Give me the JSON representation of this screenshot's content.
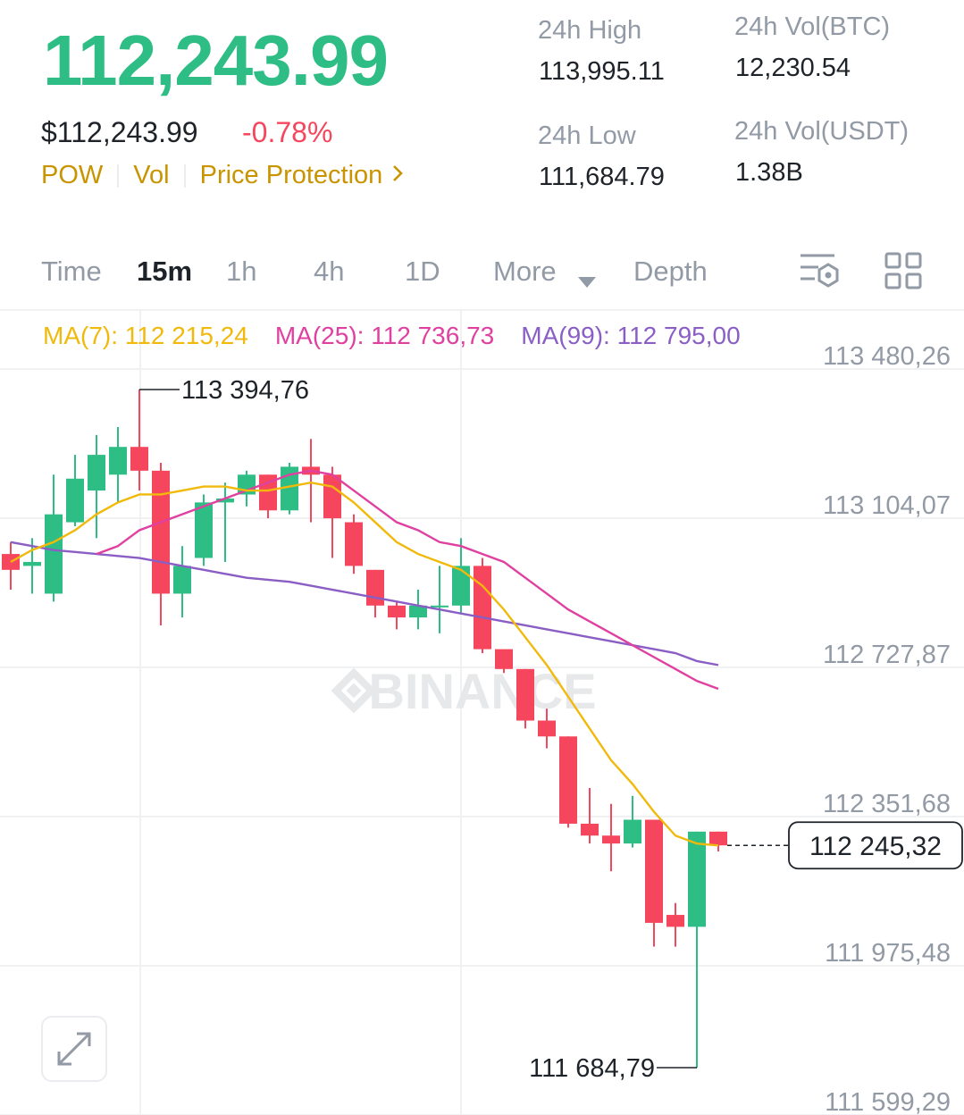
{
  "header": {
    "price": "112,243.99",
    "price_usd": "$112,243.99",
    "change_pct": "-0.78%",
    "tags": [
      "POW",
      "Vol",
      "Price Protection"
    ],
    "colors": {
      "up": "#2ebd85",
      "down": "#f6465d",
      "accent": "#c99400"
    }
  },
  "stats": {
    "high_label": "24h High",
    "high_value": "113,995.11",
    "low_label": "24h Low",
    "low_value": "111,684.79",
    "vol_btc_label": "24h Vol(BTC)",
    "vol_btc_value": "12,230.54",
    "vol_usdt_label": "24h Vol(USDT)",
    "vol_usdt_value": "1.38B"
  },
  "tabs": {
    "time": "Time",
    "m15": "15m",
    "h1": "1h",
    "h4": "4h",
    "d1": "1D",
    "more": "More",
    "depth": "Depth",
    "icons": [
      "chevron-down-icon",
      "indicator-settings-icon",
      "grid-layout-icon"
    ]
  },
  "ma": {
    "ma7_label": "MA(7): 112 215,24",
    "ma25_label": "MA(25): 112 736,73",
    "ma99_label": "MA(99): 112 795,00",
    "colors": {
      "ma7": "#f0b90b",
      "ma25": "#e040a0",
      "ma99": "#8a5ec4"
    }
  },
  "watermark": "BINANCE",
  "chart_data": {
    "type": "candlestick",
    "y_tick_labels": [
      "113 480,26",
      "113 104,07",
      "112 727,87",
      "112 351,68",
      "111 975,48",
      "111 599,29"
    ],
    "ylim": [
      111599.29,
      113480.26
    ],
    "current_price_label": "112 245,32",
    "current_price": 112245.32,
    "high_annotation": "113 394,76",
    "high_value": 113394.76,
    "low_annotation": "111 684,79",
    "low_value": 111684.79,
    "candles": [
      {
        "o": 112980,
        "h": 113010,
        "c": 112940,
        "l": 112890
      },
      {
        "o": 112950,
        "h": 113020,
        "c": 112960,
        "l": 112880
      },
      {
        "o": 112880,
        "h": 113180,
        "c": 113080,
        "l": 112860
      },
      {
        "o": 113060,
        "h": 113230,
        "c": 113170,
        "l": 113050
      },
      {
        "o": 113140,
        "h": 113280,
        "c": 113230,
        "l": 113020
      },
      {
        "o": 113180,
        "h": 113300,
        "c": 113250,
        "l": 113110
      },
      {
        "o": 113250,
        "h": 113394.76,
        "c": 113190,
        "l": 113140
      },
      {
        "o": 113190,
        "h": 113210,
        "c": 112880,
        "l": 112800
      },
      {
        "o": 112880,
        "h": 113000,
        "c": 112950,
        "l": 112820
      },
      {
        "o": 112970,
        "h": 113130,
        "c": 113110,
        "l": 112950
      },
      {
        "o": 113110,
        "h": 113160,
        "c": 113120,
        "l": 112960
      },
      {
        "o": 113130,
        "h": 113190,
        "c": 113180,
        "l": 113100
      },
      {
        "o": 113180,
        "h": 113180,
        "c": 113090,
        "l": 113070
      },
      {
        "o": 113090,
        "h": 113210,
        "c": 113200,
        "l": 113080
      },
      {
        "o": 113200,
        "h": 113270,
        "c": 113180,
        "l": 113060
      },
      {
        "o": 113180,
        "h": 113200,
        "c": 113070,
        "l": 112970
      },
      {
        "o": 113060,
        "h": 113080,
        "c": 112950,
        "l": 112930
      },
      {
        "o": 112940,
        "h": 112940,
        "c": 112850,
        "l": 112820
      },
      {
        "o": 112850,
        "h": 112860,
        "c": 112820,
        "l": 112790
      },
      {
        "o": 112820,
        "h": 112890,
        "c": 112850,
        "l": 112790
      },
      {
        "o": 112850,
        "h": 112950,
        "c": 112850,
        "l": 112780
      },
      {
        "o": 112850,
        "h": 113020,
        "c": 112950,
        "l": 112830
      },
      {
        "o": 112950,
        "h": 112970,
        "c": 112740,
        "l": 112730
      },
      {
        "o": 112740,
        "h": 112730,
        "c": 112690,
        "l": 112680
      },
      {
        "o": 112690,
        "h": 112690,
        "c": 112560,
        "l": 112540
      },
      {
        "o": 112560,
        "h": 112590,
        "c": 112520,
        "l": 112490
      },
      {
        "o": 112520,
        "h": 112520,
        "c": 112300,
        "l": 112290
      },
      {
        "o": 112300,
        "h": 112390,
        "c": 112270,
        "l": 112250
      },
      {
        "o": 112270,
        "h": 112350,
        "c": 112250,
        "l": 112180
      },
      {
        "o": 112250,
        "h": 112370,
        "c": 112310,
        "l": 112240
      },
      {
        "o": 112310,
        "h": 112310,
        "c": 112050,
        "l": 111990
      },
      {
        "o": 112070,
        "h": 112100,
        "c": 112040,
        "l": 111990
      },
      {
        "o": 112040,
        "h": 112280,
        "c": 112280,
        "l": 111684.79
      },
      {
        "o": 112280,
        "h": 112280,
        "c": 112245.32,
        "l": 112230
      }
    ],
    "ma7": [
      112960,
      112990,
      113010,
      113040,
      113080,
      113110,
      113130,
      113130,
      113140,
      113150,
      113150,
      113140,
      113140,
      113150,
      113160,
      113150,
      113110,
      113060,
      113010,
      112980,
      112960,
      112940,
      112900,
      112840,
      112770,
      112700,
      112620,
      112540,
      112460,
      112400,
      112330,
      112270,
      112250,
      112245
    ],
    "ma25": [
      null,
      null,
      null,
      null,
      112980,
      113000,
      113040,
      113060,
      113080,
      113100,
      113120,
      113140,
      113160,
      113180,
      113190,
      113180,
      113140,
      113100,
      113060,
      113040,
      113010,
      113000,
      112980,
      112960,
      112920,
      112880,
      112840,
      112810,
      112780,
      112750,
      112720,
      112690,
      112660,
      112640
    ],
    "ma99": [
      113010,
      113000,
      112990,
      112985,
      112980,
      112975,
      112970,
      112960,
      112950,
      112940,
      112930,
      112920,
      112915,
      112910,
      112900,
      112890,
      112880,
      112870,
      112860,
      112850,
      112840,
      112830,
      112820,
      112810,
      112800,
      112790,
      112780,
      112770,
      112760,
      112750,
      112740,
      112730,
      112710,
      112700
    ]
  }
}
